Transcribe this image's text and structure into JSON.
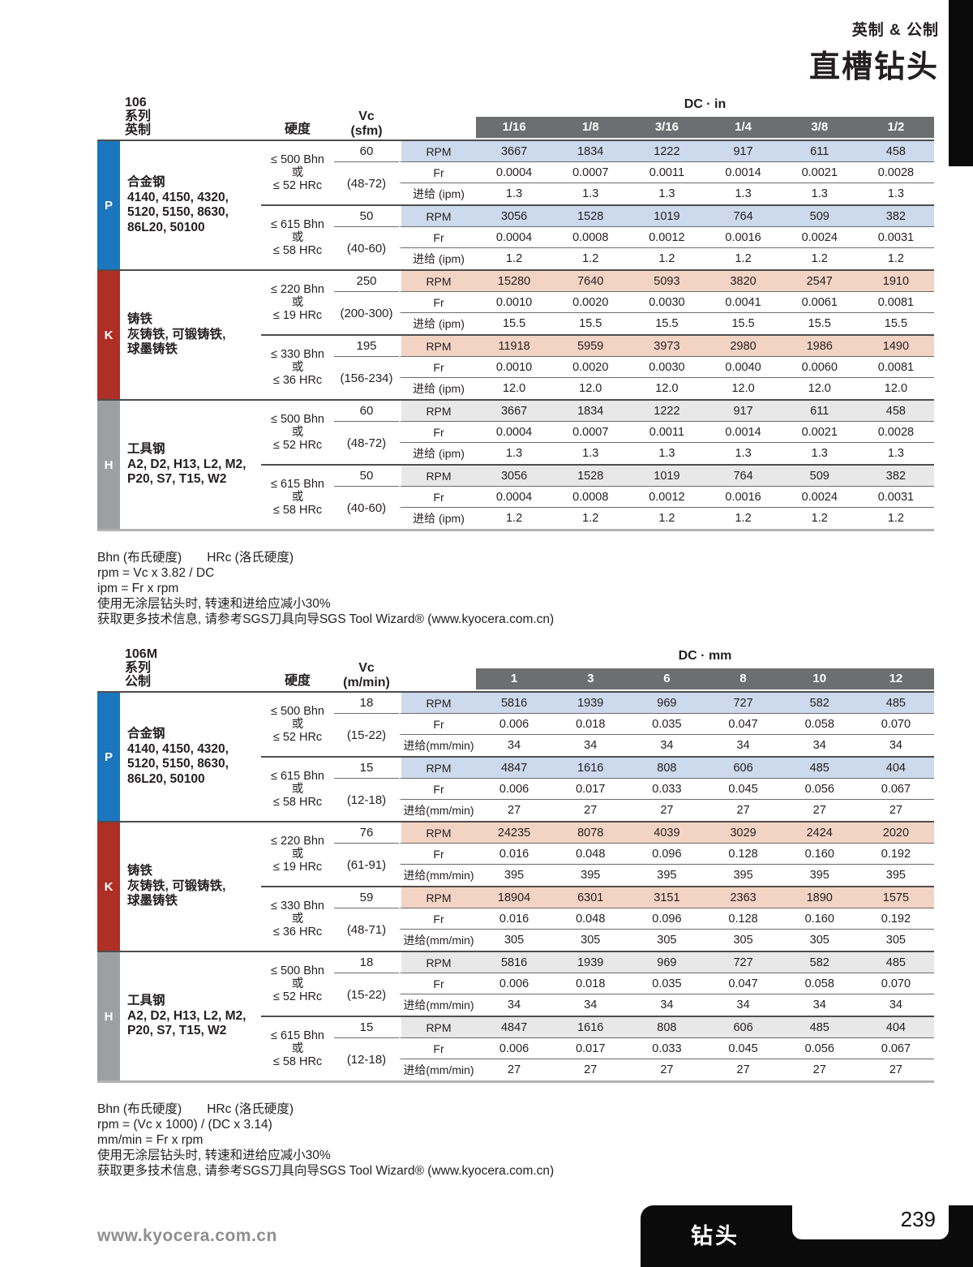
{
  "header": {
    "subtitle": "英制 & 公制",
    "title": "直槽钻头"
  },
  "footer": {
    "website": "www.kyocera.com.cn",
    "tab_label": "钻头",
    "page_number": "239"
  },
  "colors": {
    "size_bar": "#6d6e71",
    "p_block": "#1b76bd",
    "k_block": "#ae2f26",
    "h_block": "#9d9fa2"
  },
  "tables": [
    {
      "series_lines": [
        "106",
        "系列",
        "英制"
      ],
      "hardness_header": "硬度",
      "vc_label": "Vc",
      "vc_unit": "(sfm)",
      "dc_header": "DC · in",
      "sizes": [
        "1/16",
        "1/8",
        "3/16",
        "1/4",
        "3/8",
        "1/2"
      ],
      "row_labels": {
        "rpm": "RPM",
        "fr": "Fr",
        "feed": "进给 (ipm)"
      },
      "sections": [
        {
          "code": "P",
          "color": "#1b76bd",
          "tint": "#cdd9ec",
          "material_title": "合金钢",
          "material_lines": [
            "4140, 4150, 4320,",
            "5120, 5150, 8630,",
            "86L20, 50100"
          ],
          "groups": [
            {
              "hardness": [
                "≤ 500 Bhn",
                "或",
                "≤ 52 HRc"
              ],
              "vc": "60",
              "vc_range": "(48-72)",
              "rpm": [
                "3667",
                "1834",
                "1222",
                "917",
                "611",
                "458"
              ],
              "fr": [
                "0.0004",
                "0.0007",
                "0.0011",
                "0.0014",
                "0.0021",
                "0.0028"
              ],
              "feed": [
                "1.3",
                "1.3",
                "1.3",
                "1.3",
                "1.3",
                "1.3"
              ]
            },
            {
              "hardness": [
                "≤ 615 Bhn",
                "或",
                "≤ 58 HRc"
              ],
              "vc": "50",
              "vc_range": "(40-60)",
              "rpm": [
                "3056",
                "1528",
                "1019",
                "764",
                "509",
                "382"
              ],
              "fr": [
                "0.0004",
                "0.0008",
                "0.0012",
                "0.0016",
                "0.0024",
                "0.0031"
              ],
              "feed": [
                "1.2",
                "1.2",
                "1.2",
                "1.2",
                "1.2",
                "1.2"
              ]
            }
          ]
        },
        {
          "code": "K",
          "color": "#ae2f26",
          "tint": "#f3d3c3",
          "material_title": "铸铁",
          "material_lines": [
            "灰铸铁, 可锻铸铁,",
            "球墨铸铁"
          ],
          "groups": [
            {
              "hardness": [
                "≤ 220 Bhn",
                "或",
                "≤ 19 HRc"
              ],
              "vc": "250",
              "vc_range": "(200-300)",
              "rpm": [
                "15280",
                "7640",
                "5093",
                "3820",
                "2547",
                "1910"
              ],
              "fr": [
                "0.0010",
                "0.0020",
                "0.0030",
                "0.0041",
                "0.0061",
                "0.0081"
              ],
              "feed": [
                "15.5",
                "15.5",
                "15.5",
                "15.5",
                "15.5",
                "15.5"
              ]
            },
            {
              "hardness": [
                "≤ 330 Bhn",
                "或",
                "≤ 36 HRc"
              ],
              "vc": "195",
              "vc_range": "(156-234)",
              "rpm": [
                "11918",
                "5959",
                "3973",
                "2980",
                "1986",
                "1490"
              ],
              "fr": [
                "0.0010",
                "0.0020",
                "0.0030",
                "0.0040",
                "0.0060",
                "0.0081"
              ],
              "feed": [
                "12.0",
                "12.0",
                "12.0",
                "12.0",
                "12.0",
                "12.0"
              ]
            }
          ]
        },
        {
          "code": "H",
          "color": "#9d9fa2",
          "tint": "#e8e8e8",
          "material_title": "工具钢",
          "material_lines": [
            "A2, D2, H13, L2, M2,",
            "P20, S7, T15, W2"
          ],
          "groups": [
            {
              "hardness": [
                "≤ 500 Bhn",
                "或",
                "≤ 52 HRc"
              ],
              "vc": "60",
              "vc_range": "(48-72)",
              "rpm": [
                "3667",
                "1834",
                "1222",
                "917",
                "611",
                "458"
              ],
              "fr": [
                "0.0004",
                "0.0007",
                "0.0011",
                "0.0014",
                "0.0021",
                "0.0028"
              ],
              "feed": [
                "1.3",
                "1.3",
                "1.3",
                "1.3",
                "1.3",
                "1.3"
              ]
            },
            {
              "hardness": [
                "≤ 615 Bhn",
                "或",
                "≤ 58 HRc"
              ],
              "vc": "50",
              "vc_range": "(40-60)",
              "rpm": [
                "3056",
                "1528",
                "1019",
                "764",
                "509",
                "382"
              ],
              "fr": [
                "0.0004",
                "0.0008",
                "0.0012",
                "0.0016",
                "0.0024",
                "0.0031"
              ],
              "feed": [
                "1.2",
                "1.2",
                "1.2",
                "1.2",
                "1.2",
                "1.2"
              ]
            }
          ]
        }
      ],
      "notes": [
        "Bhn (布氏硬度)　　HRc (洛氏硬度)",
        "rpm = Vc x 3.82 / DC",
        "ipm = Fr x rpm",
        "使用无涂层钻头时, 转速和进给应减小30%",
        "获取更多技术信息, 请参考SGS刀具向导SGS Tool Wizard® (www.kyocera.com.cn)"
      ]
    },
    {
      "series_lines": [
        "106M",
        "系列",
        "公制"
      ],
      "hardness_header": "硬度",
      "vc_label": "Vc",
      "vc_unit": "(m/min)",
      "dc_header": "DC · mm",
      "sizes": [
        "1",
        "3",
        "6",
        "8",
        "10",
        "12"
      ],
      "row_labels": {
        "rpm": "RPM",
        "fr": "Fr",
        "feed": "进给(mm/min)"
      },
      "sections": [
        {
          "code": "P",
          "color": "#1b76bd",
          "tint": "#cdd9ec",
          "material_title": "合金钢",
          "material_lines": [
            "4140, 4150, 4320,",
            "5120, 5150, 8630,",
            "86L20, 50100"
          ],
          "groups": [
            {
              "hardness": [
                "≤ 500 Bhn",
                "或",
                "≤ 52 HRc"
              ],
              "vc": "18",
              "vc_range": "(15-22)",
              "rpm": [
                "5816",
                "1939",
                "969",
                "727",
                "582",
                "485"
              ],
              "fr": [
                "0.006",
                "0.018",
                "0.035",
                "0.047",
                "0.058",
                "0.070"
              ],
              "feed": [
                "34",
                "34",
                "34",
                "34",
                "34",
                "34"
              ]
            },
            {
              "hardness": [
                "≤ 615 Bhn",
                "或",
                "≤ 58 HRc"
              ],
              "vc": "15",
              "vc_range": "(12-18)",
              "rpm": [
                "4847",
                "1616",
                "808",
                "606",
                "485",
                "404"
              ],
              "fr": [
                "0.006",
                "0.017",
                "0.033",
                "0.045",
                "0.056",
                "0.067"
              ],
              "feed": [
                "27",
                "27",
                "27",
                "27",
                "27",
                "27"
              ]
            }
          ]
        },
        {
          "code": "K",
          "color": "#ae2f26",
          "tint": "#f3d3c3",
          "material_title": "铸铁",
          "material_lines": [
            "灰铸铁, 可锻铸铁,",
            "球墨铸铁"
          ],
          "groups": [
            {
              "hardness": [
                "≤ 220 Bhn",
                "或",
                "≤ 19 HRc"
              ],
              "vc": "76",
              "vc_range": "(61-91)",
              "rpm": [
                "24235",
                "8078",
                "4039",
                "3029",
                "2424",
                "2020"
              ],
              "fr": [
                "0.016",
                "0.048",
                "0.096",
                "0.128",
                "0.160",
                "0.192"
              ],
              "feed": [
                "395",
                "395",
                "395",
                "395",
                "395",
                "395"
              ]
            },
            {
              "hardness": [
                "≤ 330 Bhn",
                "或",
                "≤ 36 HRc"
              ],
              "vc": "59",
              "vc_range": "(48-71)",
              "rpm": [
                "18904",
                "6301",
                "3151",
                "2363",
                "1890",
                "1575"
              ],
              "fr": [
                "0.016",
                "0.048",
                "0.096",
                "0.128",
                "0.160",
                "0.192"
              ],
              "feed": [
                "305",
                "305",
                "305",
                "305",
                "305",
                "305"
              ]
            }
          ]
        },
        {
          "code": "H",
          "color": "#9d9fa2",
          "tint": "#e8e8e8",
          "material_title": "工具钢",
          "material_lines": [
            "A2, D2, H13, L2, M2,",
            "P20, S7, T15, W2"
          ],
          "groups": [
            {
              "hardness": [
                "≤ 500 Bhn",
                "或",
                "≤ 52 HRc"
              ],
              "vc": "18",
              "vc_range": "(15-22)",
              "rpm": [
                "5816",
                "1939",
                "969",
                "727",
                "582",
                "485"
              ],
              "fr": [
                "0.006",
                "0.018",
                "0.035",
                "0.047",
                "0.058",
                "0.070"
              ],
              "feed": [
                "34",
                "34",
                "34",
                "34",
                "34",
                "34"
              ]
            },
            {
              "hardness": [
                "≤ 615 Bhn",
                "或",
                "≤ 58 HRc"
              ],
              "vc": "15",
              "vc_range": "(12-18)",
              "rpm": [
                "4847",
                "1616",
                "808",
                "606",
                "485",
                "404"
              ],
              "fr": [
                "0.006",
                "0.017",
                "0.033",
                "0.045",
                "0.056",
                "0.067"
              ],
              "feed": [
                "27",
                "27",
                "27",
                "27",
                "27",
                "27"
              ]
            }
          ]
        }
      ],
      "notes": [
        "Bhn (布氏硬度)　　HRc (洛氏硬度)",
        "rpm = (Vc x 1000) / (DC x 3.14)",
        "mm/min = Fr x rpm",
        "使用无涂层钻头时, 转速和进给应减小30%",
        "获取更多技术信息, 请参考SGS刀具向导SGS Tool Wizard® (www.kyocera.com.cn)"
      ]
    }
  ]
}
